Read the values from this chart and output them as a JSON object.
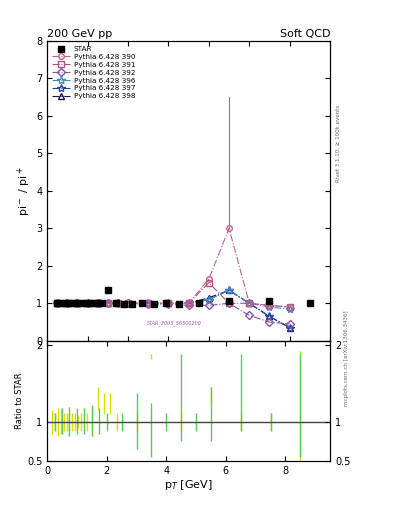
{
  "title_left": "200 GeV pp",
  "title_right": "Soft QCD",
  "right_label_top": "Rivet 3.1.10, ≥ 100k events",
  "right_label_bot": "mcplots.cern.ch [arXiv:1306.3436]",
  "watermark": "STAR_2005_S6500200",
  "ylim_main": [
    0,
    8
  ],
  "ylim_ratio": [
    0.5,
    2.05
  ],
  "xlim_main": [
    0,
    7
  ],
  "xlim_ratio": [
    0,
    9.5
  ],
  "yticks_main": [
    0,
    1,
    2,
    3,
    4,
    5,
    6,
    7,
    8
  ],
  "yticks_ratio": [
    0.5,
    1.0,
    2.0
  ],
  "star_x": [
    0.25,
    0.35,
    0.45,
    0.55,
    0.65,
    0.75,
    0.85,
    0.95,
    1.05,
    1.15,
    1.25,
    1.35,
    1.5,
    1.7,
    1.9,
    2.1,
    2.35,
    2.65,
    2.95,
    3.25,
    3.75,
    4.5,
    5.5,
    6.5,
    9.0
  ],
  "star_y": [
    1.0,
    1.0,
    1.0,
    1.0,
    1.0,
    1.0,
    1.0,
    1.0,
    1.02,
    1.0,
    1.0,
    1.0,
    1.35,
    1.0,
    0.98,
    0.97,
    1.0,
    0.98,
    1.0,
    0.99,
    1.0,
    1.05,
    1.05,
    1.0,
    1.0
  ],
  "pythia_390_x": [
    0.25,
    0.5,
    0.75,
    1.0,
    1.25,
    1.5,
    1.75,
    2.0,
    2.5,
    3.0,
    3.5,
    4.0,
    4.5,
    5.0,
    5.5,
    6.0
  ],
  "pythia_390_y": [
    1.0,
    1.0,
    1.0,
    1.0,
    1.0,
    1.0,
    1.0,
    1.0,
    1.0,
    1.0,
    1.0,
    1.65,
    3.0,
    1.0,
    0.95,
    0.9
  ],
  "pythia_390_err_x": [
    4.5
  ],
  "pythia_390_err_top": [
    6.5
  ],
  "pythia_391_x": [
    0.25,
    0.5,
    0.75,
    1.0,
    1.25,
    1.5,
    1.75,
    2.0,
    2.5,
    3.0,
    3.5,
    4.0,
    4.5,
    5.0,
    5.5,
    6.0
  ],
  "pythia_391_y": [
    1.0,
    1.0,
    1.0,
    1.0,
    1.0,
    1.0,
    1.0,
    1.0,
    1.0,
    1.0,
    1.0,
    1.55,
    1.0,
    1.0,
    0.95,
    0.9
  ],
  "pythia_392_x": [
    0.25,
    0.5,
    0.75,
    1.0,
    1.25,
    1.5,
    1.75,
    2.0,
    2.5,
    3.0,
    3.5,
    4.0,
    4.5,
    5.0,
    5.5,
    6.0
  ],
  "pythia_392_y": [
    1.0,
    1.0,
    1.0,
    1.0,
    1.0,
    1.0,
    1.0,
    1.0,
    0.98,
    0.97,
    0.95,
    0.95,
    1.0,
    0.68,
    0.5,
    0.45
  ],
  "pythia_396_x": [
    0.25,
    0.5,
    0.75,
    1.0,
    1.25,
    1.5,
    1.75,
    2.0,
    2.5,
    3.0,
    3.5,
    4.0,
    4.5,
    5.0,
    5.5,
    6.0
  ],
  "pythia_396_y": [
    1.0,
    1.0,
    1.0,
    1.0,
    1.0,
    1.0,
    1.0,
    1.0,
    1.0,
    1.0,
    1.0,
    1.1,
    1.35,
    1.0,
    0.9,
    0.85
  ],
  "pythia_397_x": [
    0.25,
    0.5,
    0.75,
    1.0,
    1.25,
    1.5,
    1.75,
    2.0,
    2.5,
    3.0,
    3.5,
    4.0,
    4.5,
    5.0,
    5.5,
    6.0
  ],
  "pythia_397_y": [
    1.0,
    1.0,
    1.0,
    1.0,
    1.0,
    1.0,
    1.0,
    1.0,
    1.0,
    1.0,
    1.0,
    1.1,
    1.35,
    1.0,
    0.65,
    0.35
  ],
  "pythia_398_x": [
    0.25,
    0.5,
    0.75,
    1.0,
    1.25,
    1.5,
    1.75,
    2.0,
    2.5,
    3.0,
    3.5,
    4.0,
    4.5,
    5.0,
    5.5,
    6.0
  ],
  "pythia_398_y": [
    1.0,
    1.0,
    1.0,
    1.0,
    1.0,
    1.0,
    1.0,
    1.0,
    1.0,
    1.0,
    1.0,
    1.15,
    1.35,
    1.0,
    0.65,
    0.35
  ],
  "color_390": "#c06090",
  "color_391": "#b05080",
  "color_392": "#8855aa",
  "color_396": "#4488bb",
  "color_397": "#2244aa",
  "color_398": "#111155",
  "ratio_yellow_x": [
    0.15,
    0.25,
    0.35,
    0.45,
    0.55,
    0.65,
    0.75,
    0.85,
    0.95,
    1.05,
    1.15,
    1.25,
    1.35,
    1.5,
    1.7,
    1.9,
    2.1,
    2.35,
    3.0,
    3.5,
    4.5,
    5.5,
    6.5,
    7.5,
    8.5
  ],
  "ratio_yellow_lo": [
    0.85,
    0.88,
    0.82,
    0.85,
    0.88,
    0.88,
    0.88,
    0.88,
    0.88,
    0.92,
    0.88,
    0.88,
    0.88,
    0.82,
    1.15,
    1.1,
    1.1,
    0.88,
    0.88,
    1.82,
    0.88,
    1.25,
    0.88,
    0.88,
    0.42
  ],
  "ratio_yellow_hi": [
    1.15,
    1.12,
    1.18,
    1.18,
    1.12,
    1.12,
    1.12,
    1.12,
    1.12,
    1.08,
    1.12,
    1.12,
    1.12,
    1.2,
    1.45,
    1.38,
    1.38,
    1.12,
    1.12,
    1.88,
    1.12,
    1.45,
    1.12,
    1.12,
    1.92
  ],
  "ratio_green_x": [
    0.25,
    0.5,
    0.75,
    1.0,
    1.25,
    1.5,
    1.75,
    2.0,
    2.5,
    3.0,
    3.5,
    4.0,
    4.5,
    5.0,
    5.5,
    6.5,
    7.5,
    8.5
  ],
  "ratio_green_lo": [
    0.88,
    0.85,
    0.82,
    0.85,
    0.85,
    0.82,
    0.85,
    0.88,
    0.88,
    0.65,
    0.55,
    0.88,
    0.75,
    0.88,
    0.75,
    0.88,
    0.88,
    0.55
  ],
  "ratio_green_hi": [
    1.12,
    1.18,
    1.2,
    1.18,
    1.18,
    1.22,
    1.18,
    1.12,
    1.12,
    1.38,
    1.25,
    1.12,
    1.88,
    1.12,
    1.45,
    1.88,
    1.12,
    1.88
  ]
}
